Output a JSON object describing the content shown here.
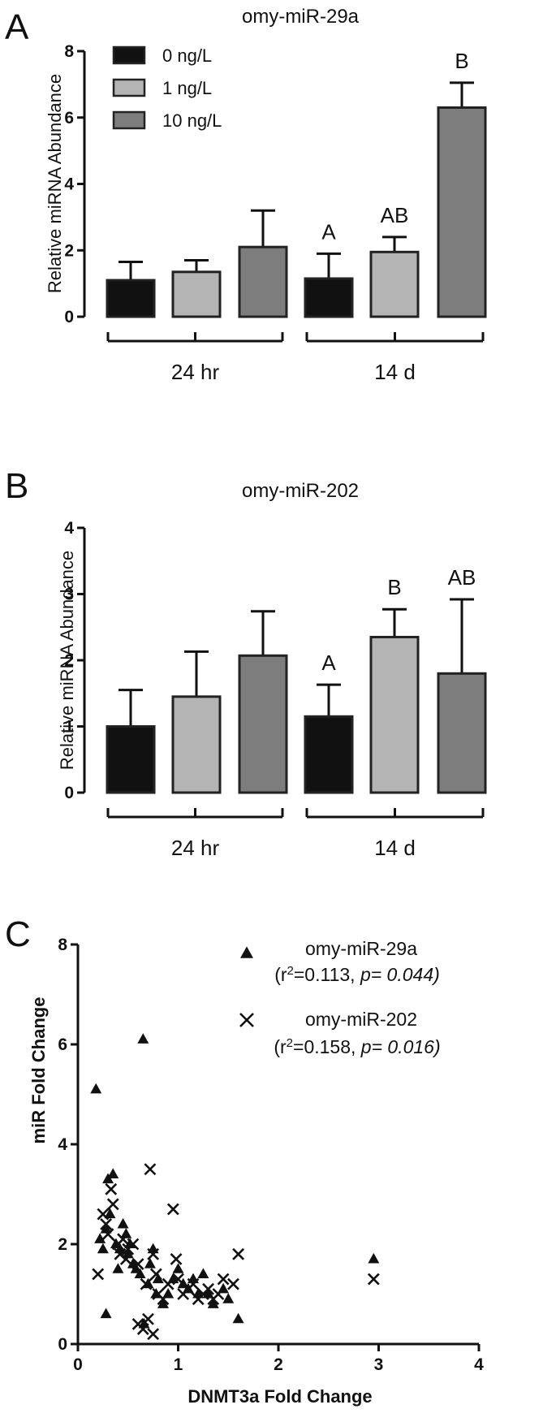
{
  "chart_data": [
    {
      "panel": "A",
      "type": "bar",
      "title": "omy-miR-29a",
      "ylabel": "Relative miRNA Abundance",
      "ylim": [
        0,
        8
      ],
      "yticks": [
        "0",
        "2",
        "4",
        "6",
        "8"
      ],
      "groups": [
        "24 hr",
        "14 d"
      ],
      "legend": [
        "0 ng/L",
        "1 ng/L",
        "10 ng/L"
      ],
      "legend_position": "top-left",
      "colors": [
        "#111111",
        "#b4b4b4",
        "#7d7d7d"
      ],
      "bars": [
        {
          "group": "24 hr",
          "series": "0 ng/L",
          "value": 1.1,
          "error": 0.55,
          "label": ""
        },
        {
          "group": "24 hr",
          "series": "1 ng/L",
          "value": 1.35,
          "error": 0.35,
          "label": ""
        },
        {
          "group": "24 hr",
          "series": "10 ng/L",
          "value": 2.1,
          "error": 1.1,
          "label": ""
        },
        {
          "group": "14 d",
          "series": "0 ng/L",
          "value": 1.15,
          "error": 0.75,
          "label": "A"
        },
        {
          "group": "14 d",
          "series": "1 ng/L",
          "value": 1.95,
          "error": 0.45,
          "label": "AB"
        },
        {
          "group": "14 d",
          "series": "10 ng/L",
          "value": 6.3,
          "error": 0.75,
          "label": "B"
        }
      ]
    },
    {
      "panel": "B",
      "type": "bar",
      "title": "omy-miR-202",
      "ylabel": "Relative miRNA Abundance",
      "ylim": [
        0,
        4
      ],
      "yticks": [
        "0",
        "1",
        "2",
        "3",
        "4"
      ],
      "groups": [
        "24 hr",
        "14 d"
      ],
      "colors": [
        "#111111",
        "#b4b4b4",
        "#7d7d7d"
      ],
      "bars": [
        {
          "group": "24 hr",
          "series": "0 ng/L",
          "value": 1.0,
          "error": 0.55,
          "label": ""
        },
        {
          "group": "24 hr",
          "series": "1 ng/L",
          "value": 1.45,
          "error": 0.68,
          "label": ""
        },
        {
          "group": "24 hr",
          "series": "10 ng/L",
          "value": 2.07,
          "error": 0.67,
          "label": ""
        },
        {
          "group": "14 d",
          "series": "0 ng/L",
          "value": 1.15,
          "error": 0.48,
          "label": "A"
        },
        {
          "group": "14 d",
          "series": "1 ng/L",
          "value": 2.35,
          "error": 0.42,
          "label": "B"
        },
        {
          "group": "14 d",
          "series": "10 ng/L",
          "value": 1.8,
          "error": 1.12,
          "label": "AB"
        }
      ]
    },
    {
      "panel": "C",
      "type": "scatter",
      "xlabel": "DNMT3a Fold Change",
      "ylabel": "miR Fold Change",
      "xlim": [
        0,
        4
      ],
      "ylim": [
        0,
        8
      ],
      "xticks": [
        "0",
        "1",
        "2",
        "3",
        "4"
      ],
      "yticks": [
        "0",
        "2",
        "4",
        "6",
        "8"
      ],
      "legend_position": "top-right",
      "series": [
        {
          "name": "omy-miR-29a",
          "stat_prefix": "(r",
          "stat_sup": "2",
          "stat_mid": "=0.113, ",
          "stat_p": "p= 0.044)",
          "marker": "triangle",
          "points": [
            [
              0.18,
              5.1
            ],
            [
              0.65,
              6.1
            ],
            [
              0.22,
              2.1
            ],
            [
              0.25,
              1.9
            ],
            [
              0.28,
              2.3
            ],
            [
              0.3,
              3.3
            ],
            [
              0.32,
              2.6
            ],
            [
              0.35,
              3.4
            ],
            [
              0.38,
              2.0
            ],
            [
              0.42,
              1.9
            ],
            [
              0.45,
              2.4
            ],
            [
              0.48,
              2.2
            ],
            [
              0.5,
              1.8
            ],
            [
              0.52,
              2.0
            ],
            [
              0.55,
              1.6
            ],
            [
              0.58,
              1.5
            ],
            [
              0.62,
              1.4
            ],
            [
              0.66,
              0.4
            ],
            [
              0.7,
              1.2
            ],
            [
              0.72,
              1.6
            ],
            [
              0.75,
              1.9
            ],
            [
              0.78,
              1.0
            ],
            [
              0.8,
              1.3
            ],
            [
              0.85,
              0.8
            ],
            [
              0.9,
              1.0
            ],
            [
              0.95,
              1.3
            ],
            [
              1.0,
              1.5
            ],
            [
              1.05,
              1.2
            ],
            [
              1.1,
              1.1
            ],
            [
              1.15,
              1.3
            ],
            [
              1.2,
              1.0
            ],
            [
              1.25,
              1.4
            ],
            [
              1.3,
              1.0
            ],
            [
              1.35,
              0.8
            ],
            [
              1.45,
              1.1
            ],
            [
              1.5,
              0.9
            ],
            [
              1.6,
              0.5
            ],
            [
              0.28,
              0.6
            ],
            [
              0.4,
              1.5
            ],
            [
              2.95,
              1.7
            ]
          ]
        },
        {
          "name": "omy-miR-202",
          "stat_prefix": "(r",
          "stat_sup": "2",
          "stat_mid": "=0.158, ",
          "stat_p": "p= 0.016)",
          "marker": "x",
          "points": [
            [
              0.25,
              2.6
            ],
            [
              0.28,
              2.4
            ],
            [
              0.3,
              2.2
            ],
            [
              0.33,
              3.1
            ],
            [
              0.35,
              2.8
            ],
            [
              0.4,
              2.0
            ],
            [
              0.42,
              1.8
            ],
            [
              0.45,
              2.1
            ],
            [
              0.48,
              1.7
            ],
            [
              0.5,
              1.9
            ],
            [
              0.55,
              2.0
            ],
            [
              0.6,
              1.6
            ],
            [
              0.65,
              0.3
            ],
            [
              0.68,
              1.2
            ],
            [
              0.72,
              3.5
            ],
            [
              0.75,
              1.8
            ],
            [
              0.78,
              1.4
            ],
            [
              0.8,
              1.0
            ],
            [
              0.85,
              0.9
            ],
            [
              0.9,
              1.2
            ],
            [
              0.95,
              2.7
            ],
            [
              0.98,
              1.7
            ],
            [
              1.0,
              1.3
            ],
            [
              1.05,
              1.0
            ],
            [
              1.1,
              1.1
            ],
            [
              1.15,
              1.2
            ],
            [
              1.2,
              0.9
            ],
            [
              1.25,
              1.0
            ],
            [
              1.3,
              1.1
            ],
            [
              1.35,
              0.9
            ],
            [
              1.4,
              1.0
            ],
            [
              1.45,
              1.3
            ],
            [
              1.55,
              1.2
            ],
            [
              1.6,
              1.8
            ],
            [
              0.2,
              1.4
            ],
            [
              0.6,
              0.4
            ],
            [
              0.7,
              0.5
            ],
            [
              0.75,
              0.2
            ],
            [
              2.95,
              1.3
            ]
          ]
        }
      ]
    }
  ]
}
